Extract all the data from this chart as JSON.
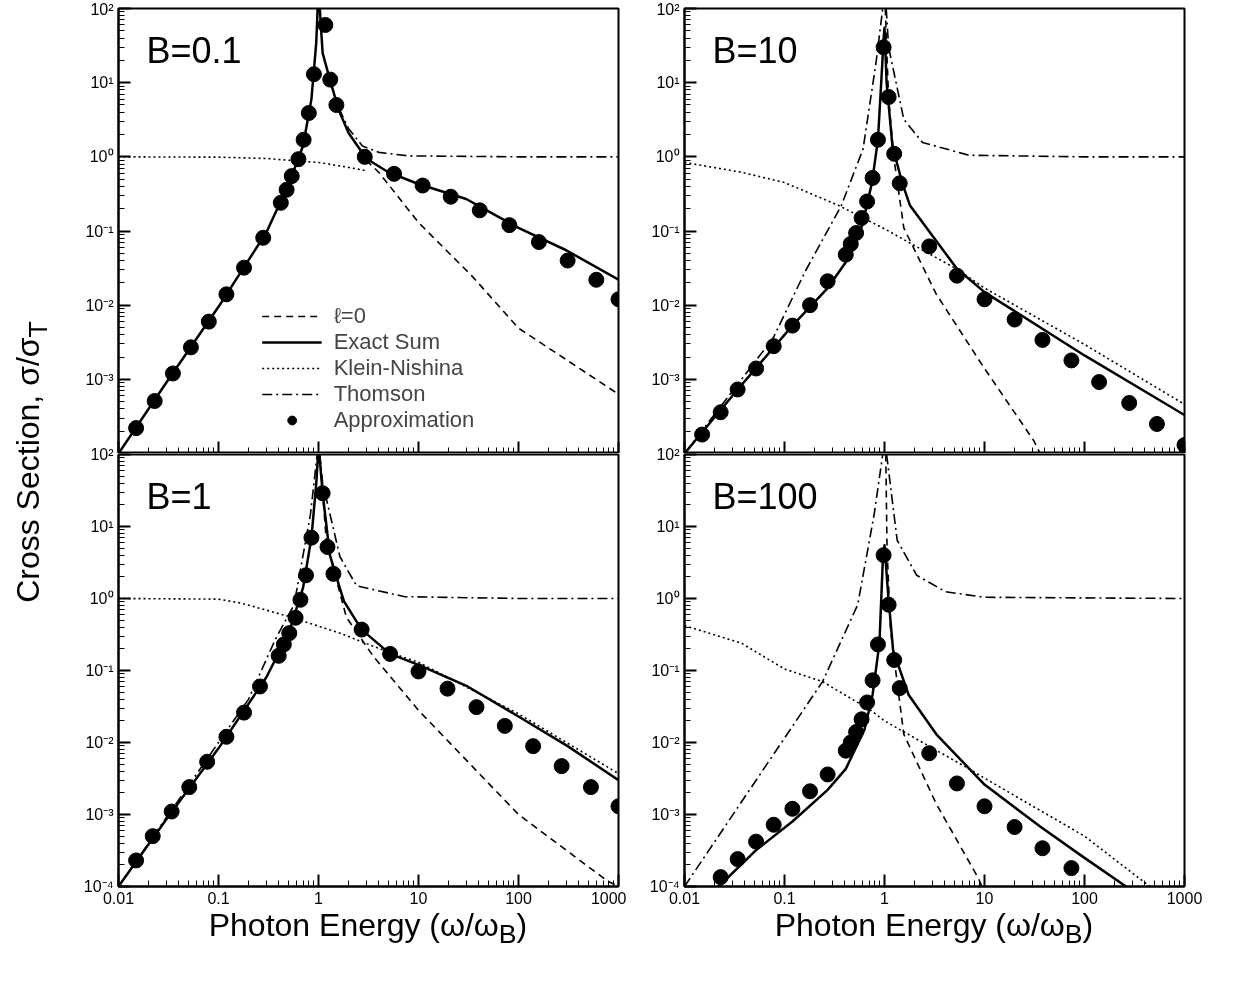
{
  "chart_data": [
    {
      "type": "line",
      "title": "B=0.1",
      "ylabel": "Cross Section, σ/σ$_{T}$",
      "log": "xy",
      "grid": false,
      "legend": "bottom",
      "tick_labels": "y",
      "xlim": [
        0.01,
        1000
      ],
      "ylim": [
        0.0001,
        100
      ],
      "xticks": [
        0.01,
        0.1,
        1,
        10,
        100,
        1000
      ],
      "yticks": [
        {
          "value": 0.0001,
          "label": null
        },
        {
          "value": 0.001,
          "label": "10⁻³"
        },
        {
          "value": 0.01,
          "label": "10⁻²"
        },
        {
          "value": 0.1,
          "label": "10⁻¹"
        },
        {
          "value": 1,
          "label": "10⁰"
        },
        {
          "value": 10,
          "label": "10¹"
        },
        {
          "value": 100,
          "label": "10²"
        }
      ],
      "series": [
        {
          "name": "ℓ=0",
          "color": "#000000",
          "line_style": "dashed",
          "x": [
            3,
            4,
            10,
            34,
            100,
            1000
          ],
          "values": [
            0.9,
            0.62,
            0.13,
            0.025,
            0.0049,
            0.00063
          ]
        },
        {
          "name": "Exact Sum",
          "color": "#000000",
          "line_style": "solid",
          "x": [
            0.01,
            0.03,
            0.1,
            0.3,
            0.5,
            0.7,
            0.85,
            0.95,
            0.98,
            1.0,
            1.03,
            1.1,
            1.3,
            1.6,
            2,
            3,
            5,
            10,
            30,
            100,
            300,
            1000
          ],
          "values": [
            0.0001,
            0.0009,
            0.0095,
            0.095,
            0.42,
            1.4,
            6,
            35,
            100,
            null,
            100,
            25,
            11,
            4.2,
            2.1,
            0.95,
            0.62,
            0.43,
            0.27,
            0.11,
            0.055,
            0.022
          ]
        },
        {
          "name": "Klein-Nishina",
          "color": "#000000",
          "line_style": "dotted",
          "x": [
            0.01,
            0.1,
            0.3,
            0.5,
            1,
            2,
            3
          ],
          "values": [
            1.0,
            0.99,
            0.95,
            0.9,
            0.84,
            0.72,
            0.65
          ]
        },
        {
          "name": "Thomson",
          "color": "#000000",
          "line_style": "dashdot",
          "x": [
            1.6,
            2,
            2.75,
            4,
            8,
            100,
            1000
          ],
          "values": [
            4.5,
            2.4,
            1.4,
            1.15,
            1.03,
            1.0,
            1.0
          ]
        },
        {
          "name": "Approximation",
          "color": "#000000",
          "type": "scatter",
          "marker": "circle",
          "x": [
            0.015,
            0.023,
            0.035,
            0.053,
            0.08,
            0.12,
            0.18,
            0.28,
            0.42,
            0.48,
            0.54,
            0.63,
            0.71,
            0.8,
            0.9,
            1.17,
            1.31,
            1.51,
            2.9,
            5.7,
            11,
            21,
            41,
            81,
            160,
            310,
            600,
            1000
          ],
          "values": [
            0.00022,
            0.00051,
            0.0012,
            0.0027,
            0.006,
            0.014,
            0.032,
            0.081,
            0.24,
            0.36,
            0.55,
            0.93,
            1.7,
            3.9,
            13,
            60,
            11,
            5.0,
            1.0,
            0.59,
            0.41,
            0.29,
            0.19,
            0.12,
            0.071,
            0.04,
            0.022,
            0.012
          ]
        }
      ]
    },
    {
      "type": "line",
      "title": "B=10",
      "log": "xy",
      "grid": false,
      "tick_labels": "y",
      "xlim": [
        0.01,
        1000
      ],
      "ylim": [
        0.0001,
        100
      ],
      "xticks": [
        0.01,
        0.1,
        1,
        10,
        100,
        1000
      ],
      "yticks": [
        {
          "value": 0.0001,
          "label": null
        },
        {
          "value": 0.001,
          "label": "10⁻³"
        },
        {
          "value": 0.01,
          "label": "10⁻²"
        },
        {
          "value": 0.1,
          "label": "10⁻¹"
        },
        {
          "value": 1,
          "label": "10⁰"
        },
        {
          "value": 10,
          "label": "10¹"
        },
        {
          "value": 100,
          "label": "10²"
        }
      ],
      "series": [
        {
          "color": "#000000",
          "line_style": "dashed",
          "x": [
            1.02,
            1.05,
            1.1,
            1.25,
            1.56,
            3.3,
            10,
            31,
            36
          ],
          "values": [
            100,
            30,
            6,
            0.9,
            0.11,
            0.014,
            0.0014,
            0.00015,
            0.0001
          ]
        },
        {
          "color": "#000000",
          "line_style": "solid",
          "x": [
            0.01,
            0.034,
            0.12,
            0.27,
            0.41,
            0.6,
            0.75,
            0.86,
            0.95,
            0.98,
            1.0,
            1.05,
            1.2,
            1.5,
            1.8,
            3,
            5.3,
            10,
            100,
            1000
          ],
          "values": [
            0.0001,
            0.00073,
            0.0053,
            0.017,
            0.038,
            0.12,
            0.45,
            1.7,
            18,
            40,
            55,
            10,
            1.4,
            0.45,
            0.22,
            0.087,
            0.031,
            0.015,
            0.0021,
            0.00033
          ]
        },
        {
          "color": "#000000",
          "line_style": "dotted",
          "x": [
            0.01,
            0.037,
            0.1,
            0.35,
            1,
            5.2,
            10,
            100,
            1000
          ],
          "values": [
            0.84,
            0.62,
            0.45,
            0.22,
            0.107,
            0.031,
            0.017,
            0.00295,
            0.00046
          ]
        },
        {
          "color": "#000000",
          "line_style": "dashdot",
          "x": [
            0.01,
            0.077,
            0.16,
            0.37,
            0.61,
            0.82,
            0.96,
            1.0,
            1.04,
            1.1,
            1.56,
            2.4,
            7,
            100,
            1000
          ],
          "values": [
            0.0001,
            0.0036,
            0.028,
            0.22,
            1.27,
            18,
            100,
            null,
            100,
            30,
            3.2,
            1.56,
            1.05,
            1.0,
            1.0
          ]
        },
        {
          "color": "#000000",
          "type": "scatter",
          "marker": "circle",
          "x": [
            0.015,
            0.023,
            0.034,
            0.052,
            0.078,
            0.12,
            0.18,
            0.27,
            0.41,
            0.46,
            0.52,
            0.59,
            0.67,
            0.76,
            0.86,
            0.98,
            1.1,
            1.25,
            1.42,
            2.8,
            5.3,
            10,
            20,
            38,
            74,
            140,
            280,
            530,
            1000
          ],
          "values": [
            0.00018,
            0.00036,
            0.00073,
            0.0014,
            0.0028,
            0.0053,
            0.01,
            0.021,
            0.048,
            0.067,
            0.094,
            0.15,
            0.25,
            0.52,
            1.7,
            30,
            6.4,
            1.1,
            0.44,
            0.062,
            0.025,
            0.012,
            0.0064,
            0.0034,
            0.0018,
            0.00092,
            0.00048,
            0.00025,
            0.00013
          ]
        }
      ]
    },
    {
      "type": "line",
      "title": "B=1",
      "xlabel": "Photon Energy (ω/ω$_{B}$)",
      "log": "xy",
      "grid": false,
      "xlim": [
        0.01,
        1000
      ],
      "ylim": [
        0.0001,
        100
      ],
      "xticks": [
        0.01,
        0.1,
        1,
        10,
        100,
        1000
      ],
      "yticks": [
        {
          "value": 0.0001,
          "label": "10⁻⁴"
        },
        {
          "value": 0.001,
          "label": "10⁻³"
        },
        {
          "value": 0.01,
          "label": "10⁻²"
        },
        {
          "value": 0.1,
          "label": "10⁻¹"
        },
        {
          "value": 1,
          "label": "10⁰"
        },
        {
          "value": 10,
          "label": "10¹"
        },
        {
          "value": 100,
          "label": "10²"
        }
      ],
      "series": [
        {
          "color": "#000000",
          "line_style": "dashed",
          "x": [
            1.03,
            1.2,
            1.9,
            3.5,
            10,
            100,
            770,
            1000
          ],
          "values": [
            100,
            6,
            0.55,
            0.16,
            0.028,
            0.001,
            0.00012,
            0.0001
          ]
        },
        {
          "color": "#000000",
          "line_style": "solid",
          "x": [
            0.01,
            0.03,
            0.1,
            0.3,
            0.5,
            0.7,
            0.85,
            0.95,
            0.99,
            1.0,
            1.02,
            1.1,
            1.3,
            1.64,
            1.8,
            2.7,
            5.2,
            10,
            31,
            100,
            310,
            1000
          ],
          "values": [
            0.0001,
            0.00085,
            0.0083,
            0.08,
            0.32,
            1.4,
            7,
            40,
            100,
            null,
            100,
            29,
            4,
            1.37,
            0.91,
            0.37,
            0.17,
            0.12,
            0.06,
            0.023,
            0.0089,
            0.003
          ]
        },
        {
          "color": "#000000",
          "line_style": "dotted",
          "x": [
            0.01,
            0.1,
            0.17,
            0.49,
            1.64,
            5,
            10,
            100,
            1000
          ],
          "values": [
            1.0,
            0.98,
            0.86,
            0.57,
            0.33,
            0.18,
            0.13,
            0.025,
            0.0037
          ]
        },
        {
          "color": "#000000",
          "line_style": "dashdot",
          "x": [
            0.01,
            0.1,
            0.2,
            0.37,
            0.57,
            0.83,
            0.97,
            1.0,
            1.03,
            1.1,
            1.64,
            2.4,
            7.3,
            100,
            1000
          ],
          "values": [
            0.0001,
            0.01,
            0.04,
            0.27,
            0.82,
            14.6,
            100,
            null,
            100,
            40,
            3.8,
            1.5,
            1.06,
            1.0,
            1.0
          ]
        },
        {
          "color": "#000000",
          "type": "scatter",
          "marker": "circle",
          "x": [
            0.015,
            0.022,
            0.034,
            0.051,
            0.077,
            0.12,
            0.18,
            0.26,
            0.4,
            0.45,
            0.51,
            0.59,
            0.66,
            0.75,
            0.85,
            1.1,
            1.23,
            1.41,
            2.7,
            5.2,
            10,
            19.5,
            38,
            73,
            140,
            270,
            530,
            1000
          ],
          "values": [
            0.00023,
            0.0005,
            0.0011,
            0.0024,
            0.0054,
            0.012,
            0.026,
            0.06,
            0.16,
            0.23,
            0.33,
            0.54,
            0.96,
            2.1,
            7.0,
            29,
            5.2,
            2.2,
            0.37,
            0.17,
            0.097,
            0.056,
            0.031,
            0.017,
            0.0089,
            0.0047,
            0.0024,
            0.0013
          ]
        }
      ]
    },
    {
      "type": "line",
      "title": "B=100",
      "xlabel": "Photon Energy (ω/ω$_{B}$)",
      "log": "xy",
      "grid": false,
      "xlim": [
        0.01,
        1000
      ],
      "ylim": [
        0.0001,
        100
      ],
      "xticks": [
        0.01,
        0.1,
        1,
        10,
        100,
        1000
      ],
      "yticks": [
        {
          "value": 0.0001,
          "label": "10⁻⁴"
        },
        {
          "value": 0.001,
          "label": "10⁻³"
        },
        {
          "value": 0.01,
          "label": "10⁻²"
        },
        {
          "value": 0.1,
          "label": "10⁻¹"
        },
        {
          "value": 1,
          "label": "10⁰"
        },
        {
          "value": 10,
          "label": "10¹"
        },
        {
          "value": 100,
          "label": "10²"
        }
      ],
      "series": [
        {
          "color": "#000000",
          "line_style": "dashed",
          "x": [
            1.03,
            1.06,
            1.15,
            1.56,
            3.3,
            8.7,
            9.4
          ],
          "values": [
            100,
            5,
            0.36,
            0.013,
            0.0014,
            0.00013,
            0.0001
          ]
        },
        {
          "color": "#000000",
          "line_style": "solid",
          "x": [
            0.022,
            0.052,
            0.12,
            0.27,
            0.41,
            0.63,
            0.76,
            0.89,
            0.96,
            1.0,
            1.09,
            1.22,
            1.74,
            3.3,
            10,
            36,
            96,
            260
          ],
          "values": [
            0.0001,
            0.00032,
            0.0008,
            0.0022,
            0.0043,
            0.015,
            0.046,
            0.24,
            3.1,
            5.5,
            1.1,
            0.19,
            0.046,
            0.013,
            0.0026,
            0.00068,
            0.00026,
            0.0001
          ]
        },
        {
          "color": "#000000",
          "line_style": "dotted",
          "x": [
            0.01,
            0.037,
            0.1,
            0.24,
            0.73,
            1,
            7,
            10,
            100,
            450
          ],
          "values": [
            0.42,
            0.24,
            0.105,
            0.07,
            0.028,
            0.02,
            0.0043,
            0.0032,
            0.0005,
            0.0001
          ]
        },
        {
          "color": "#000000",
          "line_style": "dashdot",
          "x": [
            0.01,
            0.24,
            0.54,
            0.79,
            0.96,
            1.0,
            1.05,
            1.34,
            2.1,
            4.1,
            10,
            1000
          ],
          "values": [
            0.0001,
            0.07,
            0.82,
            15,
            100,
            null,
            100,
            6.4,
            2.1,
            1.24,
            1.04,
            1.0
          ]
        },
        {
          "color": "#000000",
          "type": "scatter",
          "marker": "circle",
          "x": [
            0.023,
            0.034,
            0.052,
            0.078,
            0.12,
            0.18,
            0.27,
            0.41,
            0.46,
            0.52,
            0.59,
            0.67,
            0.76,
            0.86,
            0.98,
            1.1,
            1.25,
            1.42,
            2.8,
            5.3,
            10,
            20,
            38,
            74
          ],
          "values": [
            0.000135,
            0.00024,
            0.00042,
            0.00072,
            0.0012,
            0.0021,
            0.0036,
            0.0077,
            0.01,
            0.014,
            0.021,
            0.036,
            0.073,
            0.23,
            4.0,
            0.82,
            0.14,
            0.057,
            0.0071,
            0.0027,
            0.0013,
            0.00067,
            0.00034,
            0.00018
          ]
        }
      ]
    }
  ]
}
